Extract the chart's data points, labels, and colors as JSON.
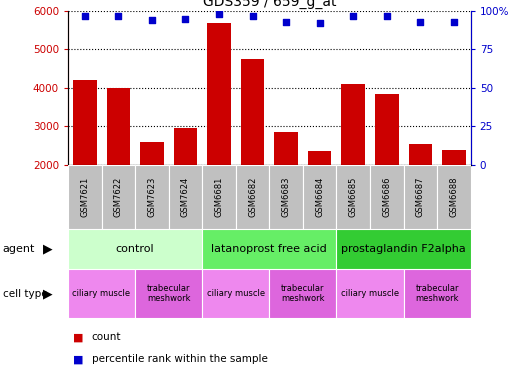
{
  "title": "GDS359 / 659_g_at",
  "samples": [
    "GSM7621",
    "GSM7622",
    "GSM7623",
    "GSM7624",
    "GSM6681",
    "GSM6682",
    "GSM6683",
    "GSM6684",
    "GSM6685",
    "GSM6686",
    "GSM6687",
    "GSM6688"
  ],
  "counts": [
    4200,
    4000,
    2600,
    2950,
    5700,
    4750,
    2850,
    2350,
    4100,
    3850,
    2550,
    2380
  ],
  "percentiles": [
    97,
    97,
    94,
    95,
    98,
    97,
    93,
    92,
    97,
    97,
    93,
    93
  ],
  "ylim_left": [
    2000,
    6000
  ],
  "ylim_right": [
    0,
    100
  ],
  "yticks_left": [
    2000,
    3000,
    4000,
    5000,
    6000
  ],
  "yticks_right": [
    0,
    25,
    50,
    75,
    100
  ],
  "yticklabels_right": [
    "0",
    "25",
    "50",
    "75",
    "100%"
  ],
  "bar_color": "#cc0000",
  "dot_color": "#0000cc",
  "agent_groups": [
    {
      "label": "control",
      "start": 0,
      "end": 4,
      "color": "#ccffcc"
    },
    {
      "label": "latanoprost free acid",
      "start": 4,
      "end": 8,
      "color": "#66ee66"
    },
    {
      "label": "prostaglandin F2alpha",
      "start": 8,
      "end": 12,
      "color": "#33cc33"
    }
  ],
  "cell_type_groups": [
    {
      "label": "ciliary muscle",
      "start": 0,
      "end": 2,
      "color": "#ee88ee"
    },
    {
      "label": "trabecular\nmeshwork",
      "start": 2,
      "end": 4,
      "color": "#dd66dd"
    },
    {
      "label": "ciliary muscle",
      "start": 4,
      "end": 6,
      "color": "#ee88ee"
    },
    {
      "label": "trabecular\nmeshwork",
      "start": 6,
      "end": 8,
      "color": "#dd66dd"
    },
    {
      "label": "ciliary muscle",
      "start": 8,
      "end": 10,
      "color": "#ee88ee"
    },
    {
      "label": "trabecular\nmeshwork",
      "start": 10,
      "end": 12,
      "color": "#dd66dd"
    }
  ],
  "legend_count_color": "#cc0000",
  "legend_dot_color": "#0000cc",
  "xlabel_bg": "#c0c0c0",
  "fig_width": 5.23,
  "fig_height": 3.66,
  "dpi": 100
}
